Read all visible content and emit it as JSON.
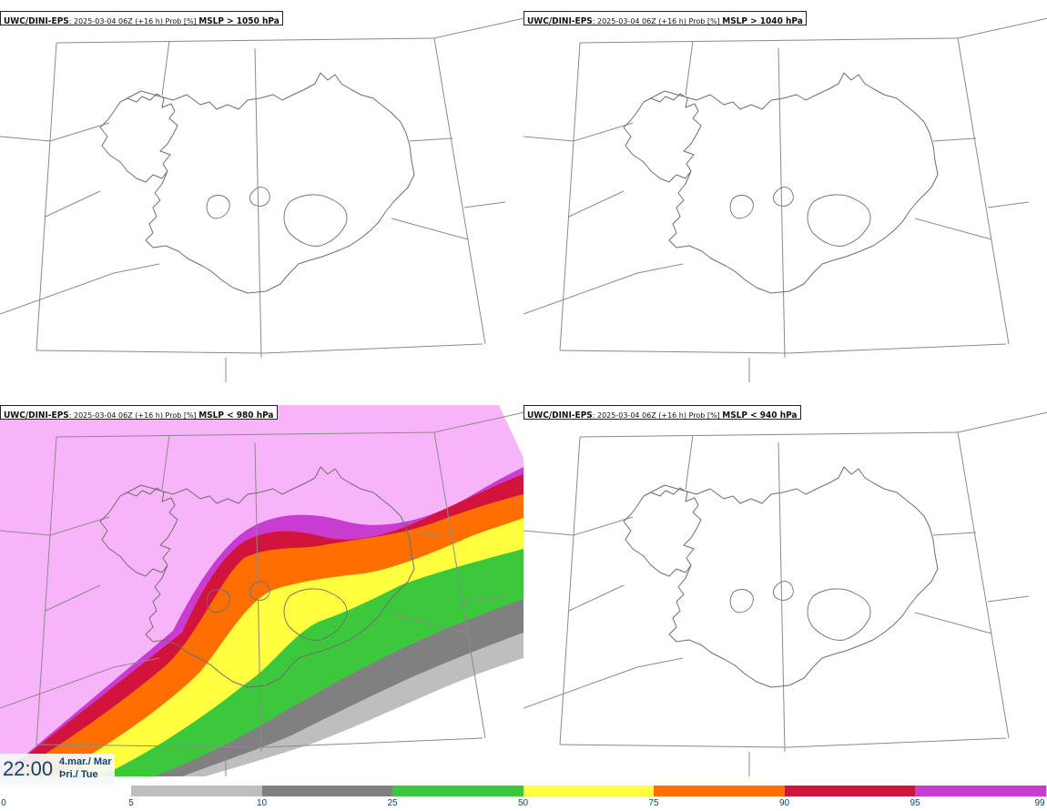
{
  "panels": [
    {
      "model": "UWC/DINI-EPS",
      "info": ": 2025-03-04 06Z (+16 h) Prob [%] ",
      "param": "MSLP > 1050 hPa"
    },
    {
      "model": "UWC/DINI-EPS",
      "info": ": 2025-03-04 06Z (+16 h) Prob [%] ",
      "param": "MSLP > 1040 hPa"
    },
    {
      "model": "UWC/DINI-EPS",
      "info": ": 2025-03-04 06Z (+16 h) Prob [%] ",
      "param": "MSLP < 980 hPa"
    },
    {
      "model": "UWC/DINI-EPS",
      "info": ": 2025-03-04 06Z (+16 h) Prob [%] ",
      "param": "MSLP < 940 hPa"
    }
  ],
  "time": {
    "clock": "22:00",
    "date_line1": "4.mar./ Mar",
    "date_line2": "Þri./ Tue"
  },
  "legend": {
    "ticks": [
      "0",
      "5",
      "10",
      "25",
      "50",
      "75",
      "90",
      "95",
      "99"
    ],
    "colors": [
      "#bebebe",
      "#808080",
      "#3cc83c",
      "#ffff40",
      "#ff6e00",
      "#d2143c",
      "#c83cd2",
      "#f8b4f8"
    ]
  }
}
